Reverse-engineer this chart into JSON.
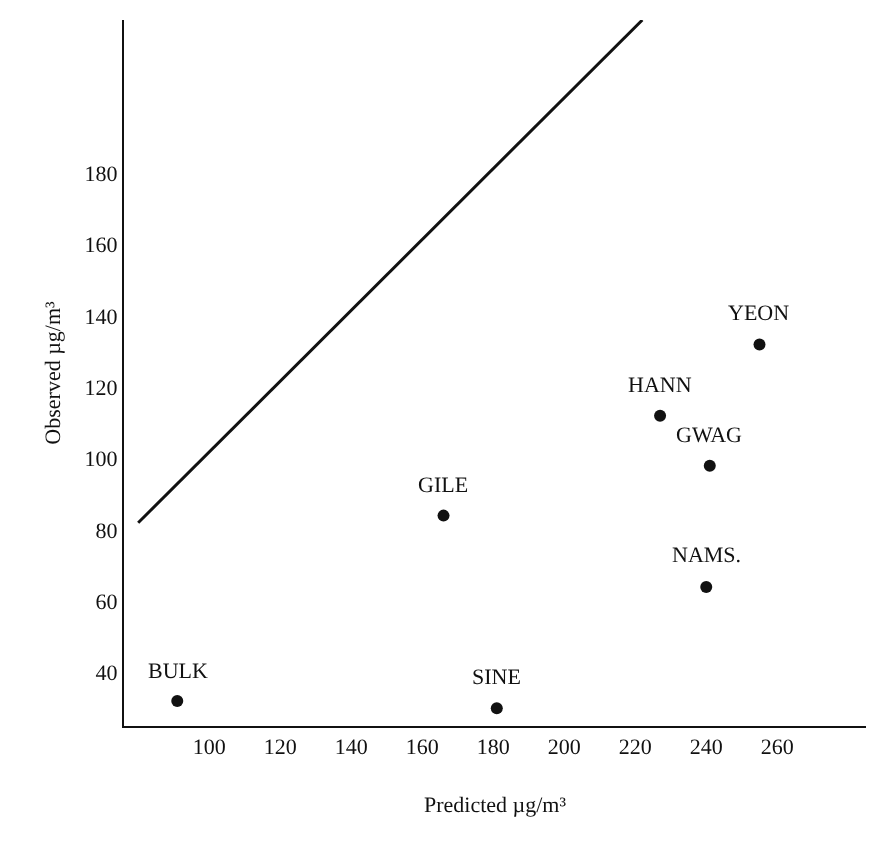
{
  "chart_data": {
    "type": "scatter",
    "xlabel": "Predicted µg/m³",
    "ylabel": "Observed µg/m³",
    "xlim": [
      76,
      285
    ],
    "xticks": [
      100,
      120,
      140,
      160,
      180,
      200,
      220,
      240,
      260
    ],
    "ylim": [
      25,
      223
    ],
    "yticks": [
      40,
      60,
      80,
      100,
      120,
      140,
      160,
      180
    ],
    "grid": false,
    "marker": "circle",
    "series": [
      {
        "type": "scatter",
        "color": "#111111",
        "x": [
          91,
          166,
          181,
          227,
          241,
          240,
          255
        ],
        "values": [
          32,
          84,
          30,
          112,
          98,
          64,
          132
        ]
      },
      {
        "type": "line",
        "color": "#111111",
        "x": [
          80,
          222
        ],
        "values": [
          82,
          223
        ],
        "marker": "none",
        "line_style": "solid"
      }
    ],
    "annotations": [
      {
        "text": "BULK",
        "x": 91,
        "y": 32
      },
      {
        "text": "GILE",
        "x": 166,
        "y": 84
      },
      {
        "text": "SINE",
        "x": 181,
        "y": 30
      },
      {
        "text": "HANN",
        "x": 227,
        "y": 112
      },
      {
        "text": "GWAG",
        "x": 241,
        "y": 98
      },
      {
        "text": "NAMS.",
        "x": 240,
        "y": 64
      },
      {
        "text": "YEON",
        "x": 255,
        "y": 132
      }
    ]
  }
}
